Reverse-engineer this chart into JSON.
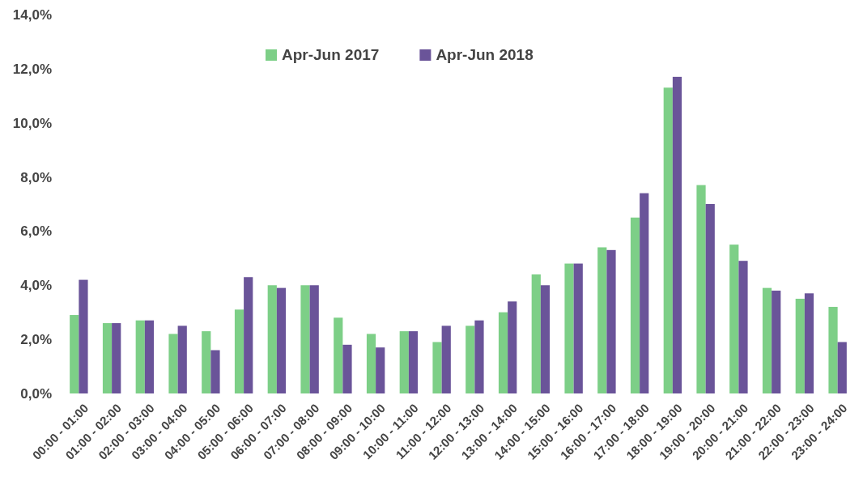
{
  "chart_data": {
    "type": "bar",
    "categories": [
      "00:00 - 01:00",
      "01:00 - 02:00",
      "02:00 - 03:00",
      "03:00 - 04:00",
      "04:00 - 05:00",
      "05:00 - 06:00",
      "06:00 - 07:00",
      "07:00 - 08:00",
      "08:00 - 09:00",
      "09:00 - 10:00",
      "10:00 - 11:00",
      "11:00 - 12:00",
      "12:00 - 13:00",
      "13:00 - 14:00",
      "14:00 - 15:00",
      "15:00 - 16:00",
      "16:00 - 17:00",
      "17:00 - 18:00",
      "18:00 - 19:00",
      "19:00 - 20:00",
      "20:00 - 21:00",
      "21:00 - 22:00",
      "22:00 - 23:00",
      "23:00 - 24:00"
    ],
    "series": [
      {
        "name": "Apr-Jun 2017",
        "color": "#7dcf87",
        "values": [
          2.9,
          2.6,
          2.7,
          2.2,
          2.3,
          3.1,
          4.0,
          4.0,
          2.8,
          2.2,
          2.3,
          1.9,
          2.5,
          3.0,
          4.4,
          4.8,
          5.4,
          6.5,
          11.3,
          7.7,
          5.5,
          3.9,
          3.5,
          3.2
        ]
      },
      {
        "name": "Apr-Jun 2018",
        "color": "#6a5499",
        "values": [
          4.2,
          2.6,
          2.7,
          2.5,
          1.6,
          4.3,
          3.9,
          4.0,
          1.8,
          1.7,
          2.3,
          2.5,
          2.7,
          3.4,
          4.0,
          4.8,
          5.3,
          7.4,
          11.7,
          7.0,
          4.9,
          3.8,
          3.7,
          1.9
        ]
      }
    ],
    "ylim": [
      0,
      14
    ],
    "yticks": [
      {
        "value": 0,
        "label": "0,0%"
      },
      {
        "value": 2,
        "label": "2,0%"
      },
      {
        "value": 4,
        "label": "4,0%"
      },
      {
        "value": 6,
        "label": "6,0%"
      },
      {
        "value": 8,
        "label": "8,0%"
      },
      {
        "value": 10,
        "label": "10,0%"
      },
      {
        "value": 12,
        "label": "12,0%"
      },
      {
        "value": 14,
        "label": "14,0%"
      }
    ],
    "legend": "top"
  }
}
